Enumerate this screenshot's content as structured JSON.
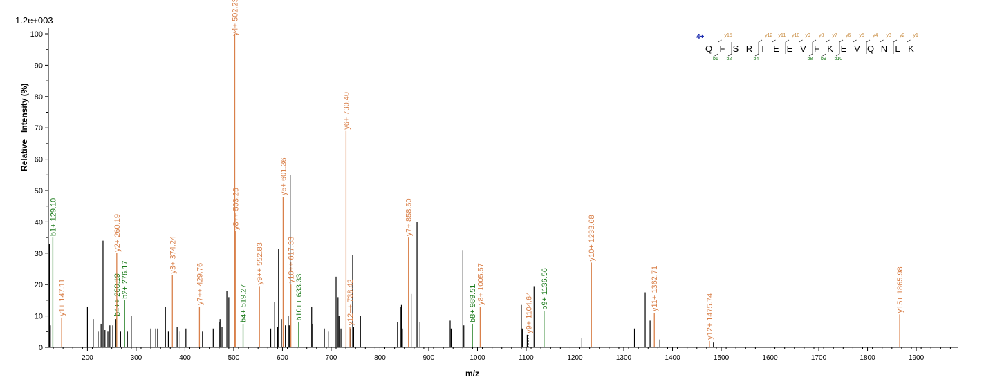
{
  "chart_data": {
    "type": "bar",
    "title": "",
    "scale_label": "1.2e+003",
    "xlabel": "m/z",
    "ylabel": "Relative   Intensity (%)",
    "xlim": [
      120,
      1985
    ],
    "ylim": [
      0,
      100
    ],
    "xticks": [
      200,
      300,
      400,
      500,
      600,
      700,
      800,
      900,
      1000,
      1100,
      1200,
      1300,
      1400,
      1500,
      1600,
      1700,
      1800,
      1900
    ],
    "yticks": [
      0,
      10,
      20,
      30,
      40,
      50,
      60,
      70,
      80,
      90,
      100
    ],
    "colors": {
      "unmatched": "#000000",
      "y_ion": "#d9804a",
      "b_ion": "#1a7a1a",
      "dashed": "#888888"
    },
    "peptide": {
      "charge": "4+",
      "sequence": [
        "Q",
        "F",
        "S",
        "R",
        "I",
        "E",
        "E",
        "V",
        "F",
        "K",
        "E",
        "V",
        "Q",
        "N",
        "L",
        "K"
      ],
      "y_labels": [
        "y15",
        "y12",
        "y11",
        "y10",
        "y9",
        "y8",
        "y7",
        "y6",
        "y5",
        "y4",
        "y3",
        "y2",
        "y1"
      ],
      "b_labels": [
        "b1",
        "b2",
        "b4",
        "b8",
        "b9",
        "b10"
      ]
    },
    "annotated_peaks": [
      {
        "mz": 129.1,
        "intensity": 35,
        "type": "b",
        "label": "b1+ 129.10"
      },
      {
        "mz": 147.11,
        "intensity": 9.5,
        "type": "y",
        "label": "y1+ 147.11"
      },
      {
        "mz": 260.19,
        "intensity": 9.5,
        "type": "b",
        "label": "b4++ 260.19"
      },
      {
        "mz": 260.19,
        "intensity": 30,
        "type": "y",
        "label": "y2+ 260.19"
      },
      {
        "mz": 276.17,
        "intensity": 15,
        "type": "b",
        "label": "b2+ 276.17"
      },
      {
        "mz": 374.24,
        "intensity": 23,
        "type": "y",
        "label": "y3+ 374.24"
      },
      {
        "mz": 429.76,
        "intensity": 13,
        "type": "y",
        "label": "y7++ 429.76"
      },
      {
        "mz": 502.23,
        "intensity": 100,
        "type": "y",
        "label": "y4+ 502.23"
      },
      {
        "mz": 503.29,
        "intensity": 37,
        "type": "y",
        "label": "y8++ 503.29"
      },
      {
        "mz": 519.27,
        "intensity": 7.5,
        "type": "b",
        "label": "b4+ 519.27"
      },
      {
        "mz": 552.83,
        "intensity": 19.5,
        "type": "y",
        "label": "y9++ 552.83"
      },
      {
        "mz": 601.36,
        "intensity": 48,
        "type": "y",
        "label": "y5+ 601.36"
      },
      {
        "mz": 617.33,
        "intensity": 20,
        "type": "y",
        "label": "y10++ 617.33"
      },
      {
        "mz": 633.33,
        "intensity": 8,
        "type": "b",
        "label": "b10++ 633.33"
      },
      {
        "mz": 730.4,
        "intensity": 69,
        "type": "y",
        "label": "y6+ 730.40"
      },
      {
        "mz": 738.42,
        "intensity": 6.5,
        "type": "y",
        "label": "y12++ 738.42"
      },
      {
        "mz": 858.5,
        "intensity": 35,
        "type": "y",
        "label": "y7+ 858.50"
      },
      {
        "mz": 989.51,
        "intensity": 7.5,
        "type": "b",
        "label": "b8+ 989.51"
      },
      {
        "mz": 1005.57,
        "intensity": 13,
        "type": "y",
        "label": "y8+ 1005.57"
      },
      {
        "mz": 1104.64,
        "intensity": 4,
        "type": "dashed",
        "label": "y9+ 1104.64"
      },
      {
        "mz": 1136.56,
        "intensity": 11.5,
        "type": "b",
        "label": "b9+ 1136.56"
      },
      {
        "mz": 1233.68,
        "intensity": 27,
        "type": "y",
        "label": "y10+ 1233.68"
      },
      {
        "mz": 1362.71,
        "intensity": 11,
        "type": "y",
        "label": "y11+ 1362.71"
      },
      {
        "mz": 1475.74,
        "intensity": 2,
        "type": "y",
        "label": "y12+ 1475.74"
      },
      {
        "mz": 1865.98,
        "intensity": 10.5,
        "type": "y",
        "label": "y15+ 1865.98"
      }
    ],
    "unannotated_peaks": [
      [
        122,
        33
      ],
      [
        124,
        7
      ],
      [
        200,
        13
      ],
      [
        212,
        9
      ],
      [
        222,
        5
      ],
      [
        228,
        7.5
      ],
      [
        232,
        34
      ],
      [
        236,
        5.5
      ],
      [
        242,
        5
      ],
      [
        246,
        7
      ],
      [
        252,
        7
      ],
      [
        258,
        9
      ],
      [
        268,
        5
      ],
      [
        282,
        5
      ],
      [
        290,
        10
      ],
      [
        330,
        6
      ],
      [
        340,
        6
      ],
      [
        344,
        6
      ],
      [
        360,
        13
      ],
      [
        366,
        5
      ],
      [
        384,
        6.5
      ],
      [
        390,
        5
      ],
      [
        402,
        6
      ],
      [
        436,
        5
      ],
      [
        458,
        6
      ],
      [
        470,
        8
      ],
      [
        472,
        9
      ],
      [
        476,
        6.5
      ],
      [
        486,
        18
      ],
      [
        490,
        16
      ],
      [
        576,
        6
      ],
      [
        584,
        14.5
      ],
      [
        590,
        6.5
      ],
      [
        592,
        31.5
      ],
      [
        598,
        9
      ],
      [
        606,
        7
      ],
      [
        612,
        10
      ],
      [
        614,
        7
      ],
      [
        616,
        55
      ],
      [
        660,
        13
      ],
      [
        662,
        7.5
      ],
      [
        686,
        6
      ],
      [
        694,
        5
      ],
      [
        710,
        22.5
      ],
      [
        714,
        16
      ],
      [
        716,
        10
      ],
      [
        720,
        6
      ],
      [
        740,
        6
      ],
      [
        744,
        29.5
      ],
      [
        746,
        6.5
      ],
      [
        760,
        10
      ],
      [
        836,
        8
      ],
      [
        842,
        13
      ],
      [
        844,
        13.5
      ],
      [
        846,
        6
      ],
      [
        864,
        17
      ],
      [
        876,
        40
      ],
      [
        882,
        8
      ],
      [
        944,
        8.5
      ],
      [
        946,
        6
      ],
      [
        970,
        31
      ],
      [
        972,
        7
      ],
      [
        1006,
        5
      ],
      [
        1090,
        13.5
      ],
      [
        1092,
        6
      ],
      [
        1102,
        4
      ],
      [
        1116,
        19.5
      ],
      [
        1214,
        3
      ],
      [
        1322,
        6
      ],
      [
        1344,
        17.5
      ],
      [
        1354,
        8.5
      ],
      [
        1374,
        2.5
      ],
      [
        1484,
        1.5
      ]
    ]
  }
}
